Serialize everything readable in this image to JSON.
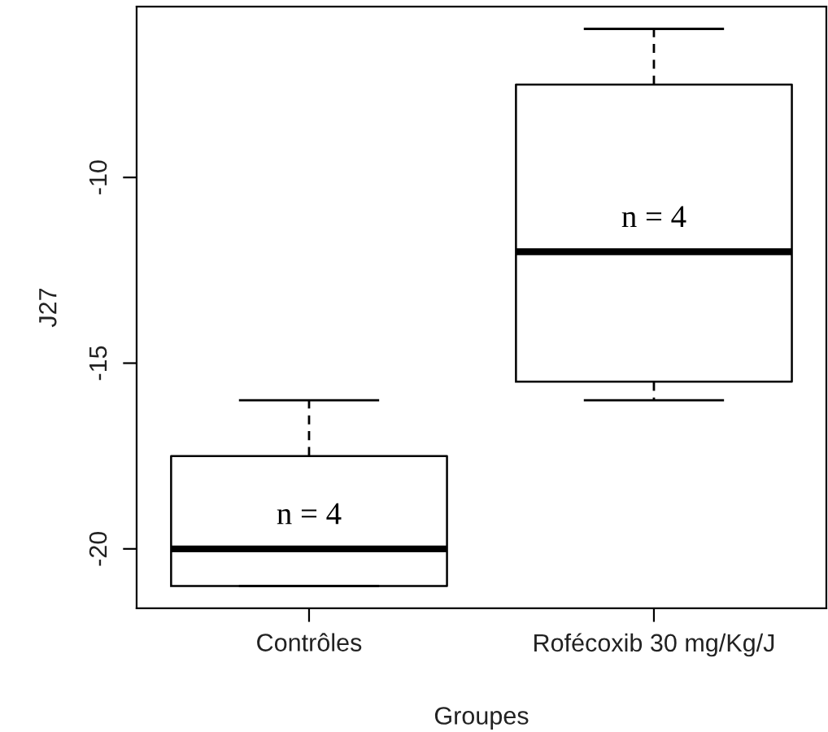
{
  "chart_data": {
    "type": "box",
    "xlabel": "Groupes",
    "ylabel": "J27",
    "categories": [
      "Contrôles",
      "Rofécoxib 30 mg/Kg/J"
    ],
    "boxes": [
      {
        "low": -21,
        "q1": -21,
        "median": -20,
        "q3": -17.5,
        "high": -16
      },
      {
        "low": -16,
        "q1": -15.5,
        "median": -12,
        "q3": -7.5,
        "high": -6
      }
    ],
    "ylim": [
      -21.6,
      -5.4
    ],
    "yticks": [
      -20,
      -15,
      -10
    ],
    "grid": false,
    "legend": false,
    "annotations": [
      "n = 4",
      "n = 4"
    ]
  }
}
